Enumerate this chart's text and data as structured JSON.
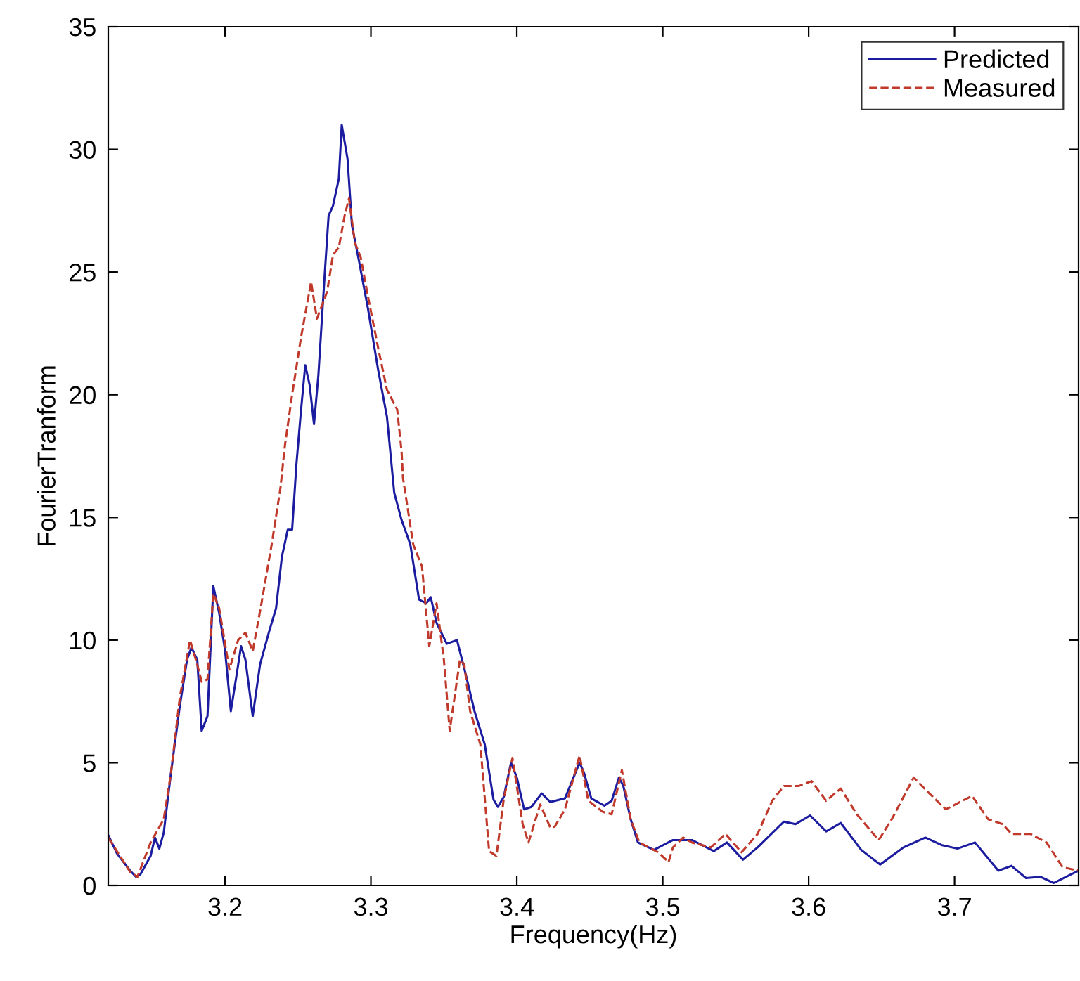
{
  "chart_data": {
    "type": "line",
    "xlabel": "Frequency(Hz)",
    "ylabel": "FourierTranform",
    "xlim": [
      3.12,
      3.785
    ],
    "ylim": [
      0,
      35
    ],
    "xticks": [
      3.2,
      3.3,
      3.4,
      3.5,
      3.6,
      3.7
    ],
    "yticks": [
      0,
      5,
      10,
      15,
      20,
      25,
      30,
      35
    ],
    "grid": false,
    "legend": "top right",
    "series": [
      {
        "name": "Predicted",
        "color": "#1c1ca0",
        "line_style": "solid",
        "x": [
          3.12,
          3.126,
          3.135,
          3.139,
          3.142,
          3.149,
          3.152,
          3.155,
          3.158,
          3.163,
          3.169,
          3.174,
          3.177,
          3.181,
          3.184,
          3.188,
          3.192,
          3.196,
          3.2,
          3.204,
          3.208,
          3.211,
          3.214,
          3.219,
          3.224,
          3.23,
          3.235,
          3.239,
          3.243,
          3.246,
          3.249,
          3.252,
          3.255,
          3.258,
          3.261,
          3.264,
          3.268,
          3.271,
          3.274,
          3.278,
          3.28,
          3.284,
          3.287,
          3.292,
          3.298,
          3.305,
          3.311,
          3.316,
          3.321,
          3.327,
          3.333,
          3.338,
          3.341,
          3.345,
          3.352,
          3.359,
          3.365,
          3.371,
          3.378,
          3.384,
          3.387,
          3.391,
          3.396,
          3.4,
          3.405,
          3.41,
          3.417,
          3.423,
          3.433,
          3.443,
          3.446,
          3.451,
          3.46,
          3.465,
          3.47,
          3.473,
          3.478,
          3.483,
          3.494,
          3.507,
          3.52,
          3.535,
          3.544,
          3.555,
          3.565,
          3.583,
          3.591,
          3.601,
          3.612,
          3.622,
          3.636,
          3.649,
          3.665,
          3.68,
          3.691,
          3.702,
          3.714,
          3.73,
          3.739,
          3.749,
          3.759,
          3.768,
          3.778,
          3.785
        ],
        "values": [
          2.05,
          1.3,
          0.6,
          0.35,
          0.45,
          1.2,
          1.95,
          1.5,
          2.15,
          4.6,
          7.3,
          9.2,
          9.7,
          9.2,
          6.3,
          6.9,
          12.2,
          11.1,
          9.6,
          7.1,
          8.6,
          9.75,
          9.2,
          6.9,
          9.0,
          10.3,
          11.3,
          13.4,
          14.5,
          14.5,
          17.2,
          19.3,
          21.2,
          20.4,
          18.8,
          20.8,
          24.6,
          27.3,
          27.7,
          28.8,
          31.0,
          29.6,
          26.9,
          25.4,
          23.5,
          21.0,
          19.1,
          16.0,
          14.9,
          13.9,
          11.65,
          11.5,
          11.75,
          10.7,
          9.85,
          10.0,
          8.6,
          7.1,
          5.75,
          3.5,
          3.2,
          3.6,
          5.0,
          4.4,
          3.1,
          3.2,
          3.75,
          3.4,
          3.55,
          5.0,
          4.6,
          3.55,
          3.25,
          3.45,
          4.4,
          4.05,
          2.7,
          1.75,
          1.45,
          1.85,
          1.85,
          1.4,
          1.75,
          1.05,
          1.55,
          2.6,
          2.5,
          2.85,
          2.2,
          2.55,
          1.45,
          0.85,
          1.55,
          1.95,
          1.65,
          1.5,
          1.75,
          0.6,
          0.8,
          0.3,
          0.35,
          0.1,
          0.4,
          0.6
        ]
      },
      {
        "name": "Measured",
        "color": "#c0392b",
        "line_style": "dashed",
        "x": [
          3.12,
          3.135,
          3.14,
          3.149,
          3.158,
          3.163,
          3.169,
          3.176,
          3.181,
          3.184,
          3.188,
          3.192,
          3.196,
          3.203,
          3.209,
          3.214,
          3.219,
          3.225,
          3.232,
          3.238,
          3.241,
          3.246,
          3.252,
          3.259,
          3.263,
          3.27,
          3.274,
          3.278,
          3.282,
          3.285,
          3.289,
          3.293,
          3.298,
          3.305,
          3.311,
          3.318,
          3.321,
          3.322,
          3.329,
          3.335,
          3.34,
          3.345,
          3.35,
          3.354,
          3.361,
          3.364,
          3.368,
          3.375,
          3.381,
          3.386,
          3.391,
          3.397,
          3.404,
          3.408,
          3.416,
          3.423,
          3.426,
          3.433,
          3.443,
          3.449,
          3.459,
          3.465,
          3.472,
          3.478,
          3.484,
          3.497,
          3.504,
          3.507,
          3.514,
          3.52,
          3.533,
          3.543,
          3.554,
          3.565,
          3.575,
          3.583,
          3.593,
          3.602,
          3.612,
          3.622,
          3.633,
          3.648,
          3.657,
          3.672,
          3.681,
          3.694,
          3.712,
          3.723,
          3.733,
          3.739,
          3.752,
          3.763,
          3.774,
          3.785
        ],
        "values": [
          1.95,
          0.55,
          0.35,
          1.75,
          2.7,
          4.6,
          7.65,
          10.0,
          9.0,
          8.3,
          8.4,
          11.9,
          11.3,
          8.8,
          10.0,
          10.3,
          9.55,
          11.5,
          13.9,
          16.2,
          17.9,
          20.0,
          22.3,
          24.6,
          23.1,
          24.2,
          25.7,
          26.0,
          27.3,
          28.0,
          26.2,
          25.6,
          24.0,
          21.9,
          20.2,
          19.4,
          17.7,
          16.6,
          13.9,
          13.0,
          9.75,
          11.5,
          9.2,
          6.3,
          9.2,
          9.0,
          7.1,
          5.75,
          1.4,
          1.2,
          3.5,
          5.2,
          2.5,
          1.75,
          3.3,
          2.35,
          2.4,
          3.1,
          5.3,
          3.45,
          3.0,
          2.9,
          4.7,
          2.7,
          1.75,
          1.35,
          0.95,
          1.55,
          1.95,
          1.75,
          1.55,
          2.1,
          1.35,
          2.1,
          3.45,
          4.05,
          4.05,
          4.25,
          3.45,
          3.95,
          2.9,
          1.85,
          2.7,
          4.4,
          3.85,
          3.1,
          3.65,
          2.7,
          2.5,
          2.1,
          2.1,
          1.75,
          0.75,
          0.6
        ]
      }
    ]
  }
}
